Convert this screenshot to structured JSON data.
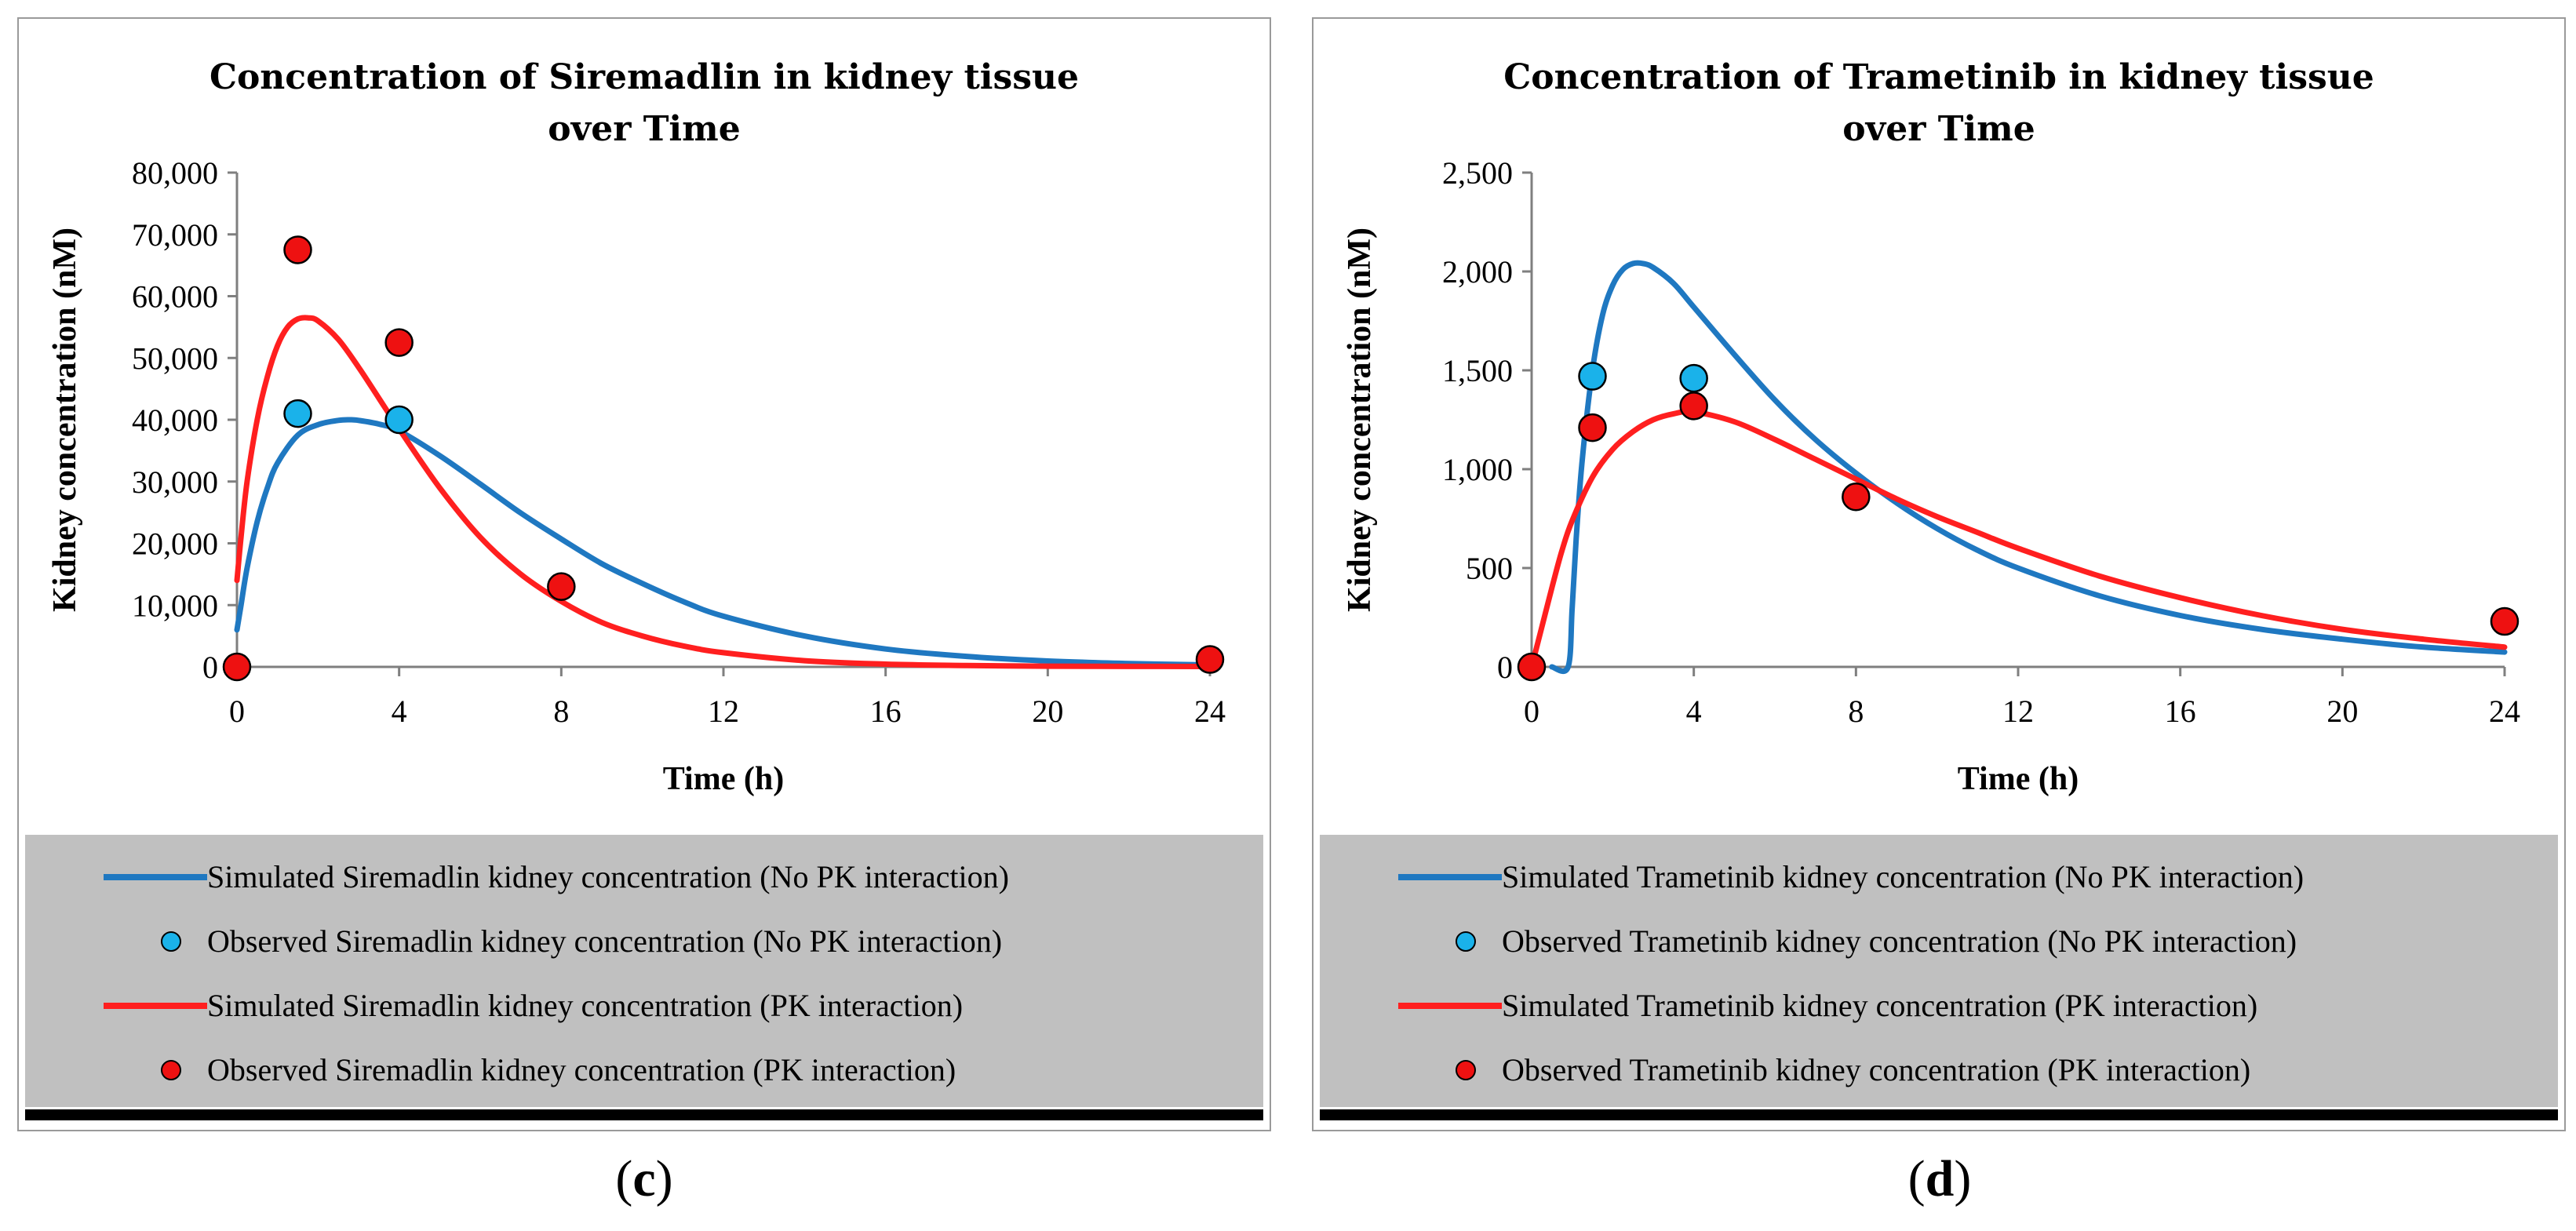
{
  "colors": {
    "no_pk": "#1f78c1",
    "pk": "#ff1f1f",
    "obs_no_pk": "#1ab2ea",
    "obs_pk": "#ee1111",
    "legend_bg": "#c0c0c0"
  },
  "chart_data": [
    {
      "type": "line",
      "id": "c",
      "panel_label": "c",
      "title_lines": [
        "Concentration of Siremadlin in kidney tissue",
        "over Time"
      ],
      "xlabel": "Time (h)",
      "ylabel": "Kidney concentration (nM)",
      "xlim": [
        0,
        24
      ],
      "ylim": [
        0,
        80000
      ],
      "xticks": [
        0,
        4,
        8,
        12,
        16,
        20,
        24
      ],
      "yticks": [
        0,
        10000,
        20000,
        30000,
        40000,
        50000,
        60000,
        70000,
        80000
      ],
      "ytick_labels": [
        "0",
        "10,000",
        "20,000",
        "30,000",
        "40,000",
        "50,000",
        "60,000",
        "70,000",
        "80,000"
      ],
      "series": [
        {
          "name": "Simulated Siremadlin kidney concentration (No PK interaction)",
          "kind": "line",
          "color_key": "no_pk",
          "x": [
            0,
            0.1,
            0.25,
            0.5,
            0.75,
            1,
            1.5,
            2,
            2.5,
            2.8,
            3,
            3.5,
            4,
            5,
            6,
            7,
            8,
            9,
            10,
            11,
            12,
            14,
            16,
            18,
            20,
            22,
            24
          ],
          "y": [
            6000,
            10000,
            16000,
            23500,
            29000,
            33000,
            37500,
            39200,
            39900,
            40000,
            39900,
            39300,
            38200,
            34200,
            29600,
            24900,
            20700,
            16700,
            13500,
            10600,
            8200,
            5000,
            2900,
            1700,
            950,
            550,
            300
          ]
        },
        {
          "name": "Observed Siremadlin kidney concentration (No PK interaction)",
          "kind": "scatter",
          "color_key": "obs_no_pk",
          "x": [
            1.5,
            4
          ],
          "y": [
            41000,
            40000
          ]
        },
        {
          "name": "Simulated Siremadlin kidney concentration (PK interaction)",
          "kind": "line",
          "color_key": "pk",
          "x": [
            0,
            0.1,
            0.25,
            0.5,
            0.75,
            1,
            1.25,
            1.5,
            1.75,
            2,
            2.5,
            3,
            3.5,
            4,
            5,
            6,
            7,
            8,
            9,
            10,
            11,
            12,
            14,
            16,
            18,
            20,
            22,
            24
          ],
          "y": [
            14000,
            21000,
            30000,
            40000,
            47000,
            52000,
            55000,
            56300,
            56500,
            56000,
            53000,
            48500,
            43500,
            38500,
            29000,
            21000,
            15000,
            10600,
            7200,
            5000,
            3400,
            2300,
            1000,
            450,
            220,
            120,
            80,
            60
          ]
        },
        {
          "name": "Observed Siremadlin kidney concentration (PK interaction)",
          "kind": "scatter",
          "color_key": "obs_pk",
          "x": [
            0,
            1.5,
            4,
            8,
            24
          ],
          "y": [
            0,
            67500,
            52500,
            13000,
            1200
          ]
        }
      ]
    },
    {
      "type": "line",
      "id": "d",
      "panel_label": "d",
      "title_lines": [
        "Concentration of Trametinib in kidney tissue",
        "over Time"
      ],
      "xlabel": "Time (h)",
      "ylabel": "Kidney concentration (nM)",
      "xlim": [
        0,
        24
      ],
      "ylim": [
        0,
        2500
      ],
      "xticks": [
        0,
        4,
        8,
        12,
        16,
        20,
        24
      ],
      "yticks": [
        0,
        500,
        1000,
        1500,
        2000,
        2500
      ],
      "ytick_labels": [
        "0",
        "500",
        "1,000",
        "1,500",
        "2,000",
        "2,500"
      ],
      "series": [
        {
          "name": "Simulated Trametinib kidney concentration (No PK interaction)",
          "kind": "line",
          "color_key": "no_pk",
          "x": [
            0.5,
            0.9,
            1.0,
            1.1,
            1.25,
            1.5,
            1.75,
            2,
            2.25,
            2.5,
            2.75,
            3,
            3.5,
            4,
            5,
            6,
            7,
            8,
            9,
            10,
            11,
            12,
            14,
            16,
            18,
            20,
            22,
            24
          ],
          "y": [
            0,
            0,
            300,
            650,
            1050,
            1500,
            1780,
            1930,
            2010,
            2040,
            2040,
            2020,
            1940,
            1820,
            1580,
            1350,
            1150,
            980,
            830,
            700,
            590,
            500,
            360,
            260,
            190,
            140,
            100,
            75
          ]
        },
        {
          "name": "Observed Trametinib kidney concentration (No PK interaction)",
          "kind": "scatter",
          "color_key": "obs_no_pk",
          "x": [
            1.5,
            4
          ],
          "y": [
            1470,
            1460
          ]
        },
        {
          "name": "Simulated Trametinib kidney concentration (PK interaction)",
          "kind": "line",
          "color_key": "pk",
          "x": [
            0,
            0.25,
            0.5,
            0.75,
            1,
            1.5,
            2,
            2.5,
            3,
            3.5,
            4,
            5,
            6,
            7,
            8,
            9,
            10,
            11,
            12,
            14,
            16,
            18,
            20,
            22,
            24
          ],
          "y": [
            0,
            200,
            400,
            590,
            740,
            960,
            1100,
            1190,
            1250,
            1280,
            1290,
            1240,
            1150,
            1050,
            950,
            850,
            760,
            680,
            600,
            460,
            350,
            260,
            190,
            140,
            100
          ]
        },
        {
          "name": "Observed Trametinib kidney concentration (PK interaction)",
          "kind": "scatter",
          "color_key": "obs_pk",
          "x": [
            0,
            1.5,
            4,
            8,
            24
          ],
          "y": [
            0,
            1210,
            1320,
            860,
            230
          ]
        }
      ]
    }
  ]
}
